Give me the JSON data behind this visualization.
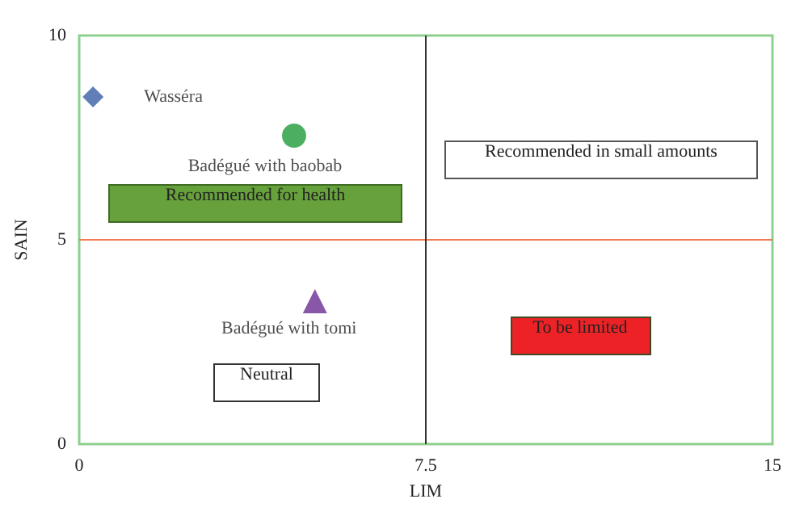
{
  "chart_data": {
    "type": "scatter",
    "xlabel": "LIM",
    "ylabel": "SAIN",
    "xlim": [
      0,
      15
    ],
    "xticks": [
      0,
      7.5,
      15
    ],
    "ylim": [
      0,
      10
    ],
    "yticks": [
      0,
      5,
      10
    ],
    "grid": false,
    "legend": false,
    "series": [
      {
        "name": "Wasséra",
        "color": "#3a5ea8",
        "marker": "diamond",
        "x": [
          0.3
        ],
        "values": [
          8.5
        ]
      },
      {
        "name": "Badégué with baobab",
        "color": "#1e9a3a",
        "marker": "circle",
        "x": [
          4.65
        ],
        "values": [
          7.55
        ]
      },
      {
        "name": "Badégué with tomi",
        "color": "#6a2d91",
        "marker": "triangle",
        "x": [
          5.1
        ],
        "values": [
          3.5
        ]
      }
    ],
    "ref_lines": [
      {
        "axis": "y",
        "value": 5,
        "color": "#f27a55"
      },
      {
        "axis": "x",
        "value": 7.5,
        "color": "#333333"
      }
    ],
    "annotations": [
      "Recommended for health",
      "Recommended in small amounts",
      "To be limited",
      "Neutral"
    ]
  }
}
